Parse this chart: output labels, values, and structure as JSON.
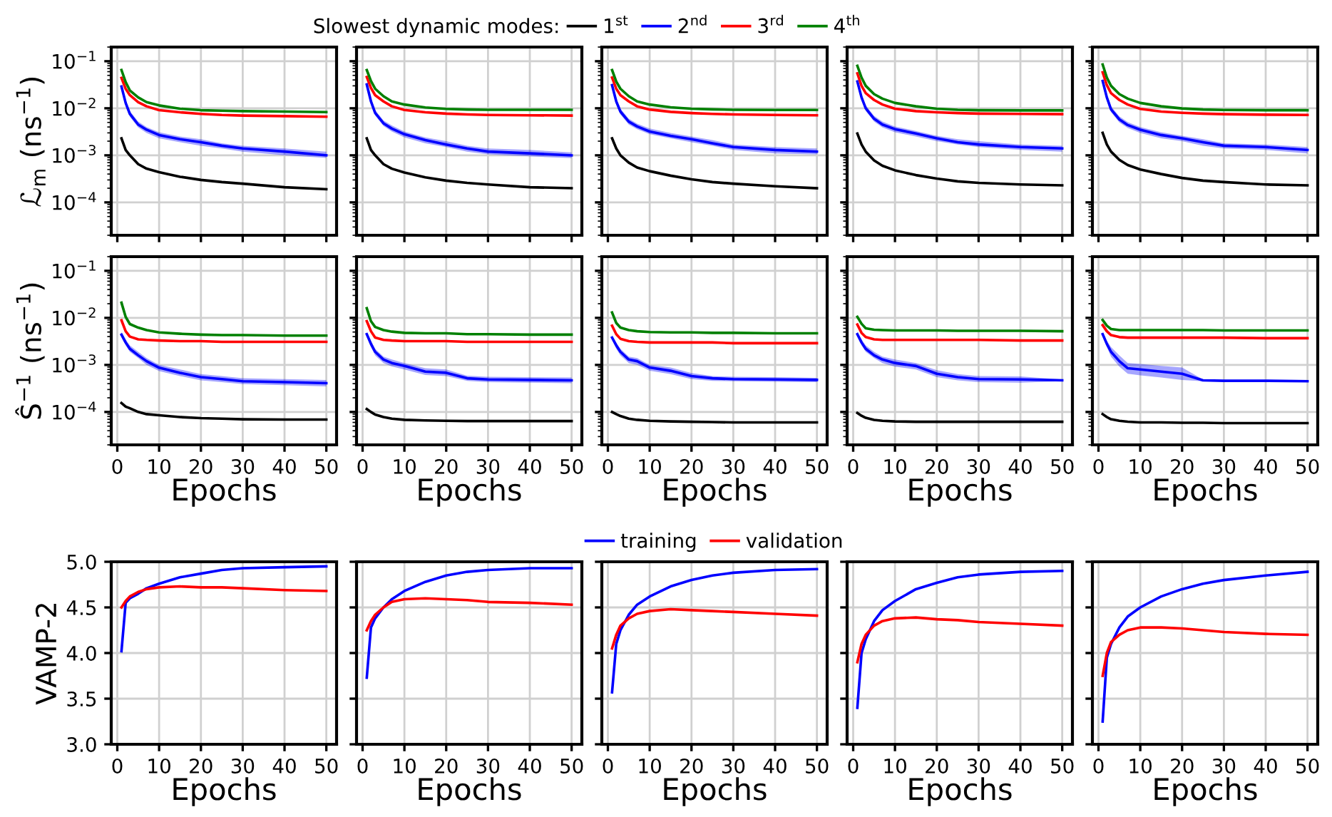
{
  "chart_data": [
    {
      "type": "line",
      "ylabel": "ℒ$_{m}$ (ns$^{−1}$)",
      "log": true,
      "grid": true,
      "tick_labels": "y",
      "xlim": [
        -1.45,
        52.45
      ],
      "xticks": [
        0,
        10,
        20,
        30,
        40,
        50
      ],
      "ylim": [
        2e-05,
        0.2
      ],
      "yticks": [
        {
          "value": 0.0001,
          "label": "10$^{−4}$"
        },
        {
          "value": 0.001,
          "label": "10$^{−3}$"
        },
        {
          "value": 0.01,
          "label": "10$^{−2}$"
        },
        {
          "value": 0.1,
          "label": "10$^{−1}$"
        }
      ],
      "x": [
        1,
        2,
        3,
        5,
        7,
        10,
        15,
        20,
        25,
        30,
        40,
        50
      ],
      "series": [
        {
          "color": "#000000",
          "values": [
            0.0023,
            0.0013,
            0.001,
            0.00065,
            0.00052,
            0.00044,
            0.00035,
            0.0003,
            0.00027,
            0.00025,
            0.00021,
            0.00019
          ]
        },
        {
          "color": "#0000ff",
          "values": [
            0.029,
            0.013,
            0.0076,
            0.0045,
            0.0035,
            0.0027,
            0.0022,
            0.0019,
            0.0016,
            0.0014,
            0.0012,
            0.001
          ],
          "lower": [
            0.026,
            0.011,
            0.0066,
            0.0039,
            0.003,
            0.0023,
            0.0019,
            0.0016,
            0.0014,
            0.0012,
            0.001,
            0.00088
          ],
          "upper": [
            0.032,
            0.015,
            0.0087,
            0.0052,
            0.004,
            0.0031,
            0.0025,
            0.0022,
            0.0018,
            0.0016,
            0.0014,
            0.0012
          ]
        },
        {
          "color": "#ff0000",
          "values": [
            0.044,
            0.026,
            0.019,
            0.0135,
            0.011,
            0.0091,
            0.0082,
            0.0076,
            0.0072,
            0.007,
            0.0068,
            0.0066
          ]
        },
        {
          "color": "#008000",
          "values": [
            0.065,
            0.036,
            0.024,
            0.017,
            0.0135,
            0.0115,
            0.0098,
            0.0091,
            0.0089,
            0.0087,
            0.0085,
            0.0083
          ]
        }
      ]
    },
    {
      "type": "line",
      "log": true,
      "grid": true,
      "tick_labels": false,
      "xlim": [
        -1.45,
        52.45
      ],
      "xticks": [
        0,
        10,
        20,
        30,
        40,
        50
      ],
      "ylim": [
        2e-05,
        0.2
      ],
      "yticks": [
        {
          "value": 0.0001,
          "label": null
        },
        {
          "value": 0.001,
          "label": null
        },
        {
          "value": 0.01,
          "label": null
        },
        {
          "value": 0.1,
          "label": null
        }
      ],
      "x": [
        1,
        2,
        3,
        5,
        7,
        10,
        15,
        20,
        25,
        30,
        40,
        50
      ],
      "series": [
        {
          "color": "#000000",
          "values": [
            0.0023,
            0.0013,
            0.001,
            0.00065,
            0.00052,
            0.00043,
            0.00034,
            0.00029,
            0.00026,
            0.00024,
            0.00021,
            0.0002
          ]
        },
        {
          "color": "#0000ff",
          "values": [
            0.032,
            0.014,
            0.008,
            0.0048,
            0.0037,
            0.0028,
            0.0021,
            0.0017,
            0.0014,
            0.0012,
            0.0011,
            0.001
          ],
          "lower": [
            0.028,
            0.012,
            0.007,
            0.0042,
            0.0032,
            0.0024,
            0.0018,
            0.0015,
            0.0012,
            0.00105,
            0.00095,
            0.00087
          ],
          "upper": [
            0.036,
            0.016,
            0.0092,
            0.0055,
            0.0043,
            0.0032,
            0.0024,
            0.002,
            0.0016,
            0.0014,
            0.0013,
            0.00115
          ]
        },
        {
          "color": "#ff0000",
          "values": [
            0.046,
            0.027,
            0.019,
            0.014,
            0.011,
            0.0092,
            0.0082,
            0.0077,
            0.0074,
            0.0072,
            0.0071,
            0.007
          ]
        },
        {
          "color": "#008000",
          "values": [
            0.065,
            0.038,
            0.026,
            0.018,
            0.014,
            0.012,
            0.0104,
            0.0097,
            0.0094,
            0.0093,
            0.0093,
            0.0093
          ]
        }
      ]
    },
    {
      "type": "line",
      "log": true,
      "grid": true,
      "tick_labels": false,
      "legend": "top",
      "legend_title": "Slowest dynamic modes:",
      "xlim": [
        -1.45,
        52.45
      ],
      "xticks": [
        0,
        10,
        20,
        30,
        40,
        50
      ],
      "ylim": [
        2e-05,
        0.2
      ],
      "yticks": [
        {
          "value": 0.0001,
          "label": null
        },
        {
          "value": 0.001,
          "label": null
        },
        {
          "value": 0.01,
          "label": null
        },
        {
          "value": 0.1,
          "label": null
        }
      ],
      "x": [
        1,
        2,
        3,
        5,
        7,
        10,
        15,
        20,
        25,
        30,
        40,
        50
      ],
      "series": [
        {
          "name": "1$^{st}$",
          "color": "#000000",
          "values": [
            0.0023,
            0.0014,
            0.001,
            0.0007,
            0.00055,
            0.00046,
            0.00037,
            0.00031,
            0.00027,
            0.00025,
            0.00022,
            0.0002
          ]
        },
        {
          "name": "2$^{nd}$",
          "color": "#0000ff",
          "values": [
            0.031,
            0.014,
            0.0085,
            0.0052,
            0.0041,
            0.0032,
            0.0026,
            0.0022,
            0.0018,
            0.0015,
            0.0013,
            0.0012
          ],
          "lower": [
            0.027,
            0.012,
            0.0074,
            0.0045,
            0.0036,
            0.0028,
            0.0023,
            0.0019,
            0.0016,
            0.0013,
            0.0011,
            0.00105
          ],
          "upper": [
            0.035,
            0.016,
            0.0098,
            0.006,
            0.0047,
            0.0037,
            0.003,
            0.0025,
            0.0021,
            0.0017,
            0.0015,
            0.0014
          ]
        },
        {
          "name": "3$^{rd}$",
          "color": "#ff0000",
          "values": [
            0.045,
            0.026,
            0.019,
            0.014,
            0.011,
            0.0094,
            0.0084,
            0.0079,
            0.0076,
            0.0074,
            0.0072,
            0.0071
          ]
        },
        {
          "name": "4$^{th}$",
          "color": "#008000",
          "values": [
            0.065,
            0.037,
            0.026,
            0.018,
            0.014,
            0.012,
            0.0105,
            0.0098,
            0.0095,
            0.0093,
            0.0092,
            0.0092
          ]
        }
      ]
    },
    {
      "type": "line",
      "log": true,
      "grid": true,
      "tick_labels": false,
      "xlim": [
        -1.45,
        52.45
      ],
      "xticks": [
        0,
        10,
        20,
        30,
        40,
        50
      ],
      "ylim": [
        2e-05,
        0.2
      ],
      "yticks": [
        {
          "value": 0.0001,
          "label": null
        },
        {
          "value": 0.001,
          "label": null
        },
        {
          "value": 0.01,
          "label": null
        },
        {
          "value": 0.1,
          "label": null
        }
      ],
      "x": [
        1,
        2,
        3,
        5,
        7,
        10,
        15,
        20,
        25,
        30,
        40,
        50
      ],
      "series": [
        {
          "color": "#000000",
          "values": [
            0.0029,
            0.0017,
            0.0012,
            0.00078,
            0.0006,
            0.00048,
            0.00038,
            0.00032,
            0.00028,
            0.00026,
            0.00024,
            0.00023
          ]
        },
        {
          "color": "#0000ff",
          "values": [
            0.037,
            0.017,
            0.01,
            0.006,
            0.0045,
            0.0036,
            0.0029,
            0.0023,
            0.0019,
            0.0017,
            0.0015,
            0.0014
          ],
          "lower": [
            0.032,
            0.015,
            0.0087,
            0.0052,
            0.0039,
            0.0031,
            0.0025,
            0.002,
            0.0017,
            0.0015,
            0.0013,
            0.0012
          ],
          "upper": [
            0.042,
            0.02,
            0.0115,
            0.0069,
            0.0052,
            0.0041,
            0.0033,
            0.0026,
            0.0022,
            0.002,
            0.0017,
            0.0016
          ]
        },
        {
          "color": "#ff0000",
          "values": [
            0.055,
            0.03,
            0.021,
            0.015,
            0.012,
            0.0098,
            0.0087,
            0.0082,
            0.0079,
            0.0077,
            0.0076,
            0.0075
          ]
        },
        {
          "color": "#008000",
          "values": [
            0.08,
            0.045,
            0.03,
            0.02,
            0.016,
            0.013,
            0.011,
            0.0098,
            0.0093,
            0.0091,
            0.009,
            0.009
          ]
        }
      ]
    },
    {
      "type": "line",
      "log": true,
      "grid": true,
      "tick_labels": false,
      "xlim": [
        -1.45,
        52.45
      ],
      "xticks": [
        0,
        10,
        20,
        30,
        40,
        50
      ],
      "ylim": [
        2e-05,
        0.2
      ],
      "yticks": [
        {
          "value": 0.0001,
          "label": null
        },
        {
          "value": 0.001,
          "label": null
        },
        {
          "value": 0.01,
          "label": null
        },
        {
          "value": 0.1,
          "label": null
        }
      ],
      "x": [
        1,
        2,
        3,
        5,
        7,
        10,
        15,
        20,
        25,
        30,
        40,
        50
      ],
      "series": [
        {
          "color": "#000000",
          "values": [
            0.003,
            0.0017,
            0.0012,
            0.0008,
            0.00062,
            0.0005,
            0.0004,
            0.00033,
            0.00029,
            0.00027,
            0.00024,
            0.00023
          ]
        },
        {
          "color": "#0000ff",
          "values": [
            0.038,
            0.017,
            0.0095,
            0.0058,
            0.0044,
            0.0035,
            0.0027,
            0.0023,
            0.0019,
            0.0016,
            0.0015,
            0.0013
          ],
          "lower": [
            0.033,
            0.015,
            0.0083,
            0.005,
            0.0038,
            0.003,
            0.0023,
            0.002,
            0.0016,
            0.0014,
            0.0013,
            0.0011
          ],
          "upper": [
            0.043,
            0.02,
            0.011,
            0.0067,
            0.0051,
            0.004,
            0.0031,
            0.0026,
            0.0022,
            0.0018,
            0.0017,
            0.0015
          ]
        },
        {
          "color": "#ff0000",
          "values": [
            0.058,
            0.031,
            0.021,
            0.015,
            0.012,
            0.0097,
            0.0085,
            0.008,
            0.0077,
            0.0075,
            0.0073,
            0.0072
          ]
        },
        {
          "color": "#008000",
          "values": [
            0.085,
            0.045,
            0.03,
            0.02,
            0.016,
            0.013,
            0.011,
            0.0099,
            0.0094,
            0.0092,
            0.0091,
            0.0091
          ]
        }
      ]
    },
    {
      "type": "line",
      "ylabel": "Ŝ$^{−1}$ (ns$^{−1}$)",
      "xlabel": "Epochs",
      "log": true,
      "grid": true,
      "xlim": [
        -1.45,
        52.45
      ],
      "xticks": [
        0,
        10,
        20,
        30,
        40,
        50
      ],
      "ylim": [
        2e-05,
        0.2
      ],
      "yticks": [
        {
          "value": 0.0001,
          "label": "10$^{−4}$"
        },
        {
          "value": 0.001,
          "label": "10$^{−3}$"
        },
        {
          "value": 0.01,
          "label": "10$^{−2}$"
        },
        {
          "value": 0.1,
          "label": "10$^{−1}$"
        }
      ],
      "x": [
        1,
        2,
        3,
        5,
        7,
        10,
        15,
        20,
        25,
        30,
        40,
        50
      ],
      "series": [
        {
          "color": "#000000",
          "values": [
            0.000155,
            0.00013,
            0.00012,
            0.0001,
            9e-05,
            8.5e-05,
            7.8e-05,
            7.4e-05,
            7.2e-05,
            7e-05,
            6.9e-05,
            6.9e-05
          ]
        },
        {
          "color": "#0000ff",
          "values": [
            0.0044,
            0.003,
            0.0022,
            0.0016,
            0.0012,
            0.00087,
            0.00068,
            0.00055,
            0.0005,
            0.00045,
            0.00043,
            0.00041
          ],
          "lower": [
            0.0039,
            0.0026,
            0.0019,
            0.0014,
            0.001,
            0.00074,
            0.00058,
            0.00047,
            0.00043,
            0.00039,
            0.00037,
            0.00035
          ],
          "upper": [
            0.005,
            0.0035,
            0.0026,
            0.0019,
            0.0014,
            0.001,
            0.0008,
            0.00064,
            0.00058,
            0.00052,
            0.0005,
            0.00048
          ]
        },
        {
          "color": "#ff0000",
          "values": [
            0.0089,
            0.0052,
            0.004,
            0.0035,
            0.0034,
            0.0033,
            0.0032,
            0.0032,
            0.0031,
            0.0031,
            0.0031,
            0.0031
          ]
        },
        {
          "color": "#008000",
          "values": [
            0.021,
            0.0105,
            0.0074,
            0.0062,
            0.0055,
            0.0049,
            0.0046,
            0.0044,
            0.0043,
            0.0043,
            0.0042,
            0.0042
          ]
        }
      ]
    },
    {
      "type": "line",
      "xlabel": "Epochs",
      "log": true,
      "grid": true,
      "tick_labels": "x",
      "xlim": [
        -1.45,
        52.45
      ],
      "xticks": [
        0,
        10,
        20,
        30,
        40,
        50
      ],
      "ylim": [
        2e-05,
        0.2
      ],
      "yticks": [
        {
          "value": 0.0001,
          "label": null
        },
        {
          "value": 0.001,
          "label": null
        },
        {
          "value": 0.01,
          "label": null
        },
        {
          "value": 0.1,
          "label": null
        }
      ],
      "x": [
        1,
        2,
        3,
        5,
        7,
        10,
        15,
        20,
        25,
        30,
        40,
        50
      ],
      "series": [
        {
          "color": "#000000",
          "values": [
            0.000115,
            0.0001,
            8.8e-05,
            7.8e-05,
            7.2e-05,
            6.8e-05,
            6.6e-05,
            6.5e-05,
            6.4e-05,
            6.4e-05,
            6.4e-05,
            6.4e-05
          ]
        },
        {
          "color": "#0000ff",
          "values": [
            0.0045,
            0.0028,
            0.0019,
            0.0013,
            0.0011,
            0.00095,
            0.00072,
            0.00068,
            0.00052,
            0.00049,
            0.00048,
            0.00047
          ],
          "lower": [
            0.004,
            0.0024,
            0.0016,
            0.0011,
            0.00093,
            0.0008,
            0.00061,
            0.00058,
            0.00046,
            0.00043,
            0.00042,
            0.00041
          ],
          "upper": [
            0.005,
            0.0033,
            0.0022,
            0.0015,
            0.0013,
            0.0011,
            0.00085,
            0.0008,
            0.00059,
            0.00056,
            0.00055,
            0.00054
          ]
        },
        {
          "color": "#ff0000",
          "values": [
            0.0085,
            0.0052,
            0.0038,
            0.0034,
            0.0033,
            0.0032,
            0.0032,
            0.0032,
            0.0031,
            0.0031,
            0.0031,
            0.0031
          ]
        },
        {
          "color": "#008000",
          "values": [
            0.016,
            0.0085,
            0.0064,
            0.0055,
            0.0051,
            0.0048,
            0.0047,
            0.0047,
            0.0045,
            0.0045,
            0.0044,
            0.0044
          ]
        }
      ]
    },
    {
      "type": "line",
      "xlabel": "Epochs",
      "log": true,
      "grid": true,
      "tick_labels": "x",
      "xlim": [
        -1.45,
        52.45
      ],
      "xticks": [
        0,
        10,
        20,
        30,
        40,
        50
      ],
      "ylim": [
        2e-05,
        0.2
      ],
      "yticks": [
        {
          "value": 0.0001,
          "label": null
        },
        {
          "value": 0.001,
          "label": null
        },
        {
          "value": 0.01,
          "label": null
        },
        {
          "value": 0.1,
          "label": null
        }
      ],
      "x": [
        1,
        2,
        3,
        5,
        7,
        10,
        15,
        20,
        25,
        30,
        40,
        50
      ],
      "series": [
        {
          "color": "#000000",
          "values": [
            0.0001,
            9e-05,
            8.2e-05,
            7.2e-05,
            6.8e-05,
            6.5e-05,
            6.3e-05,
            6.2e-05,
            6.1e-05,
            6e-05,
            6e-05,
            6e-05
          ]
        },
        {
          "color": "#0000ff",
          "values": [
            0.0038,
            0.0026,
            0.0019,
            0.0013,
            0.0012,
            0.00088,
            0.00075,
            0.00058,
            0.00052,
            0.0005,
            0.00049,
            0.00048
          ],
          "lower": [
            0.0034,
            0.0022,
            0.0016,
            0.0011,
            0.001,
            0.00075,
            0.00064,
            0.0005,
            0.00046,
            0.00045,
            0.00044,
            0.00043
          ],
          "upper": [
            0.0043,
            0.003,
            0.0022,
            0.0015,
            0.0014,
            0.001,
            0.00088,
            0.00067,
            0.00058,
            0.00056,
            0.00055,
            0.00053
          ]
        },
        {
          "color": "#ff0000",
          "values": [
            0.0068,
            0.0045,
            0.0036,
            0.0032,
            0.0031,
            0.003,
            0.003,
            0.003,
            0.003,
            0.0029,
            0.0029,
            0.0029
          ]
        },
        {
          "color": "#008000",
          "values": [
            0.013,
            0.0078,
            0.0062,
            0.0055,
            0.0052,
            0.005,
            0.0049,
            0.0049,
            0.0048,
            0.0048,
            0.0047,
            0.0047
          ]
        }
      ]
    },
    {
      "type": "line",
      "xlabel": "Epochs",
      "log": true,
      "grid": true,
      "tick_labels": "x",
      "xlim": [
        -1.45,
        52.45
      ],
      "xticks": [
        0,
        10,
        20,
        30,
        40,
        50
      ],
      "ylim": [
        2e-05,
        0.2
      ],
      "yticks": [
        {
          "value": 0.0001,
          "label": null
        },
        {
          "value": 0.001,
          "label": null
        },
        {
          "value": 0.01,
          "label": null
        },
        {
          "value": 0.1,
          "label": null
        }
      ],
      "x": [
        1,
        2,
        3,
        5,
        7,
        10,
        15,
        20,
        25,
        30,
        40,
        50
      ],
      "series": [
        {
          "color": "#000000",
          "values": [
            9.5e-05,
            8.3e-05,
            7.5e-05,
            6.8e-05,
            6.5e-05,
            6.3e-05,
            6.2e-05,
            6.2e-05,
            6.2e-05,
            6.2e-05,
            6.2e-05,
            6.2e-05
          ]
        },
        {
          "color": "#0000ff",
          "values": [
            0.0045,
            0.003,
            0.0022,
            0.0016,
            0.0013,
            0.0011,
            0.00095,
            0.00065,
            0.00055,
            0.0005,
            0.00049,
            0.00047
          ],
          "lower": [
            0.0041,
            0.0026,
            0.0019,
            0.0014,
            0.0011,
            0.00092,
            0.0008,
            0.00055,
            0.00047,
            0.00043,
            0.00042,
            0.00045
          ],
          "upper": [
            0.005,
            0.0035,
            0.0026,
            0.0019,
            0.0015,
            0.0013,
            0.0011,
            0.00077,
            0.00064,
            0.00058,
            0.00057,
            0.00049
          ]
        },
        {
          "color": "#ff0000",
          "values": [
            0.0072,
            0.0048,
            0.0039,
            0.0035,
            0.0034,
            0.0034,
            0.0034,
            0.0034,
            0.0034,
            0.0034,
            0.0033,
            0.0033
          ]
        },
        {
          "color": "#008000",
          "values": [
            0.0105,
            0.0075,
            0.006,
            0.0056,
            0.0055,
            0.0054,
            0.0054,
            0.0054,
            0.0053,
            0.0053,
            0.0053,
            0.0052
          ]
        }
      ]
    },
    {
      "type": "line",
      "xlabel": "Epochs",
      "log": true,
      "grid": true,
      "tick_labels": "x",
      "xlim": [
        -1.45,
        52.45
      ],
      "xticks": [
        0,
        10,
        20,
        30,
        40,
        50
      ],
      "ylim": [
        2e-05,
        0.2
      ],
      "yticks": [
        {
          "value": 0.0001,
          "label": null
        },
        {
          "value": 0.001,
          "label": null
        },
        {
          "value": 0.01,
          "label": null
        },
        {
          "value": 0.1,
          "label": null
        }
      ],
      "x": [
        1,
        2,
        3,
        5,
        7,
        10,
        15,
        20,
        25,
        30,
        40,
        50
      ],
      "series": [
        {
          "color": "#000000",
          "values": [
            9e-05,
            7.8e-05,
            7e-05,
            6.5e-05,
            6.2e-05,
            6e-05,
            6e-05,
            5.9e-05,
            5.9e-05,
            5.8e-05,
            5.8e-05,
            5.8e-05
          ]
        },
        {
          "color": "#0000ff",
          "values": [
            0.0045,
            0.0028,
            0.0019,
            0.0012,
            0.00085,
            0.0008,
            0.00072,
            0.00065,
            0.00047,
            0.00046,
            0.00046,
            0.00045
          ],
          "lower": [
            0.0041,
            0.0024,
            0.0015,
            0.00092,
            0.00065,
            0.0006,
            0.00054,
            0.00048,
            0.00045,
            0.00045,
            0.00045,
            0.00044
          ],
          "upper": [
            0.005,
            0.0033,
            0.0024,
            0.0016,
            0.0011,
            0.00105,
            0.00095,
            0.00088,
            0.00049,
            0.00048,
            0.00048,
            0.00047
          ]
        },
        {
          "color": "#ff0000",
          "values": [
            0.007,
            0.0052,
            0.0043,
            0.0039,
            0.0038,
            0.0038,
            0.0038,
            0.0038,
            0.0038,
            0.0038,
            0.0037,
            0.0037
          ]
        },
        {
          "color": "#008000",
          "values": [
            0.009,
            0.0068,
            0.0058,
            0.0055,
            0.0055,
            0.0055,
            0.0055,
            0.0055,
            0.0055,
            0.0054,
            0.0054,
            0.0054
          ]
        }
      ]
    },
    {
      "type": "line",
      "ylabel": "VAMP-2",
      "xlabel": "Epochs",
      "grid": true,
      "xlim": [
        -1.45,
        52.45
      ],
      "xticks": [
        0,
        10,
        20,
        30,
        40,
        50
      ],
      "ylim": [
        3,
        5
      ],
      "yticks": [
        {
          "value": 3,
          "label": "3.0"
        },
        {
          "value": 3.5,
          "label": "3.5"
        },
        {
          "value": 4,
          "label": "4.0"
        },
        {
          "value": 4.5,
          "label": "4.5"
        },
        {
          "value": 5,
          "label": "5.0"
        }
      ],
      "x": [
        1,
        2,
        3,
        5,
        7,
        10,
        15,
        20,
        25,
        30,
        40,
        50
      ],
      "series": [
        {
          "color": "#0000ff",
          "values": [
            4.02,
            4.55,
            4.6,
            4.65,
            4.71,
            4.76,
            4.83,
            4.87,
            4.91,
            4.93,
            4.94,
            4.95
          ]
        },
        {
          "color": "#ff0000",
          "values": [
            4.5,
            4.57,
            4.62,
            4.67,
            4.7,
            4.72,
            4.73,
            4.72,
            4.72,
            4.71,
            4.69,
            4.68
          ]
        }
      ]
    },
    {
      "type": "line",
      "xlabel": "Epochs",
      "grid": true,
      "tick_labels": "x",
      "xlim": [
        -1.45,
        52.45
      ],
      "xticks": [
        0,
        10,
        20,
        30,
        40,
        50
      ],
      "ylim": [
        3,
        5
      ],
      "yticks": [
        {
          "value": 3,
          "label": null
        },
        {
          "value": 3.5,
          "label": null
        },
        {
          "value": 4,
          "label": null
        },
        {
          "value": 4.5,
          "label": null
        },
        {
          "value": 5,
          "label": null
        }
      ],
      "x": [
        1,
        2,
        3,
        5,
        7,
        10,
        15,
        20,
        25,
        30,
        40,
        50
      ],
      "series": [
        {
          "color": "#0000ff",
          "values": [
            3.73,
            4.28,
            4.38,
            4.5,
            4.59,
            4.68,
            4.78,
            4.85,
            4.89,
            4.91,
            4.93,
            4.93
          ]
        },
        {
          "color": "#ff0000",
          "values": [
            4.25,
            4.35,
            4.42,
            4.5,
            4.56,
            4.59,
            4.6,
            4.59,
            4.58,
            4.56,
            4.55,
            4.53
          ]
        }
      ]
    },
    {
      "type": "line",
      "xlabel": "Epochs",
      "grid": true,
      "tick_labels": "x",
      "legend": "top",
      "xlim": [
        -1.45,
        52.45
      ],
      "xticks": [
        0,
        10,
        20,
        30,
        40,
        50
      ],
      "ylim": [
        3,
        5
      ],
      "yticks": [
        {
          "value": 3,
          "label": null
        },
        {
          "value": 3.5,
          "label": null
        },
        {
          "value": 4,
          "label": null
        },
        {
          "value": 4.5,
          "label": null
        },
        {
          "value": 5,
          "label": null
        }
      ],
      "x": [
        1,
        2,
        3,
        5,
        7,
        10,
        15,
        20,
        25,
        30,
        40,
        50
      ],
      "series": [
        {
          "name": "training",
          "color": "#0000ff",
          "values": [
            3.57,
            4.1,
            4.25,
            4.42,
            4.53,
            4.62,
            4.73,
            4.8,
            4.85,
            4.88,
            4.91,
            4.92
          ]
        },
        {
          "name": "validation",
          "color": "#ff0000",
          "values": [
            4.05,
            4.2,
            4.3,
            4.38,
            4.43,
            4.46,
            4.48,
            4.47,
            4.46,
            4.45,
            4.43,
            4.41
          ]
        }
      ]
    },
    {
      "type": "line",
      "xlabel": "Epochs",
      "grid": true,
      "tick_labels": "x",
      "xlim": [
        -1.45,
        52.45
      ],
      "xticks": [
        0,
        10,
        20,
        30,
        40,
        50
      ],
      "ylim": [
        3,
        5
      ],
      "yticks": [
        {
          "value": 3,
          "label": null
        },
        {
          "value": 3.5,
          "label": null
        },
        {
          "value": 4,
          "label": null
        },
        {
          "value": 4.5,
          "label": null
        },
        {
          "value": 5,
          "label": null
        }
      ],
      "x": [
        1,
        2,
        3,
        5,
        7,
        10,
        15,
        20,
        25,
        30,
        40,
        50
      ],
      "series": [
        {
          "color": "#0000ff",
          "values": [
            3.4,
            4.0,
            4.15,
            4.35,
            4.47,
            4.57,
            4.7,
            4.77,
            4.83,
            4.86,
            4.89,
            4.9
          ]
        },
        {
          "color": "#ff0000",
          "values": [
            3.9,
            4.1,
            4.2,
            4.3,
            4.35,
            4.38,
            4.39,
            4.37,
            4.36,
            4.34,
            4.32,
            4.3
          ]
        }
      ]
    },
    {
      "type": "line",
      "xlabel": "Epochs",
      "grid": true,
      "tick_labels": "x",
      "xlim": [
        -1.45,
        52.45
      ],
      "xticks": [
        0,
        10,
        20,
        30,
        40,
        50
      ],
      "ylim": [
        3,
        5
      ],
      "yticks": [
        {
          "value": 3,
          "label": null
        },
        {
          "value": 3.5,
          "label": null
        },
        {
          "value": 4,
          "label": null
        },
        {
          "value": 4.5,
          "label": null
        },
        {
          "value": 5,
          "label": null
        }
      ],
      "x": [
        1,
        2,
        3,
        5,
        7,
        10,
        15,
        20,
        25,
        30,
        40,
        50
      ],
      "series": [
        {
          "color": "#0000ff",
          "values": [
            3.25,
            3.95,
            4.1,
            4.28,
            4.4,
            4.5,
            4.62,
            4.7,
            4.76,
            4.8,
            4.85,
            4.89
          ]
        },
        {
          "color": "#ff0000",
          "values": [
            3.75,
            4.0,
            4.12,
            4.2,
            4.25,
            4.28,
            4.28,
            4.27,
            4.25,
            4.23,
            4.21,
            4.2
          ]
        }
      ]
    }
  ]
}
